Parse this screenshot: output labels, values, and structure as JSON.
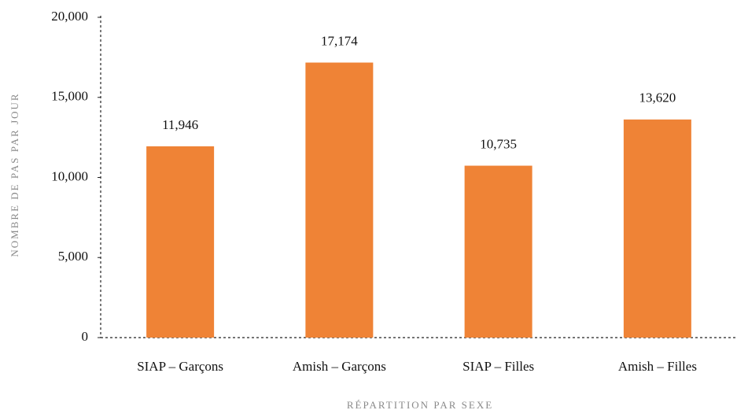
{
  "chart_data": {
    "type": "bar",
    "categories": [
      "SIAP – Garçons",
      "Amish – Garçons",
      "SIAP – Filles",
      "Amish – Filles"
    ],
    "values": [
      11946,
      17174,
      10735,
      13620
    ],
    "value_labels": [
      "11,946",
      "17,174",
      "10,735",
      "13,620"
    ],
    "color": "#ef8336",
    "xlabel": "RÉPARTITION PAR SEXE",
    "ylabel": "NOMBRE DE PAS PAR JOUR",
    "ylim": [
      0,
      20000
    ],
    "yticks": [
      0,
      {
        "value": 5000,
        "label": "5,000"
      },
      {
        "value": 10000,
        "label": "10,000"
      },
      {
        "value": 15000,
        "label": "15,000"
      },
      {
        "value": 20000,
        "label": "20,000"
      }
    ],
    "grid": false
  }
}
